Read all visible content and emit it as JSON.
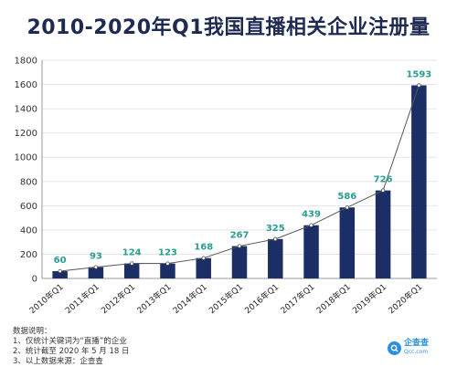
{
  "chart_data": {
    "type": "bar",
    "title": "2010-2020年Q1我国直播相关企业注册量",
    "categories": [
      "2010年Q1",
      "2011年Q1",
      "2012年Q1",
      "2013年Q1",
      "2014年Q1",
      "2015年Q1",
      "2016年Q1",
      "2017年Q1",
      "2018年Q1",
      "2019年Q1",
      "2020年Q1"
    ],
    "values": [
      60,
      93,
      124,
      123,
      168,
      267,
      325,
      439,
      586,
      726,
      1593
    ],
    "ylim": [
      0,
      1800
    ],
    "yticks": [
      "0",
      "200",
      "400",
      "600",
      "800",
      "1000",
      "1200",
      "1400",
      "1600",
      "1800"
    ],
    "xlabel": "",
    "ylabel": "",
    "grid": true,
    "trend_line": true,
    "colors": {
      "bar": "#1b2f66",
      "label": "#2a9d8f",
      "title": "#1e2a52",
      "grid": "#e6e6e6"
    }
  },
  "notes": {
    "heading": "数据说明：",
    "lines": [
      "1、仅统计关键词为“直播”的企业",
      "2、统计截至 2020 年 5 月 18 日",
      "3、以上数据来源：企查查"
    ]
  },
  "brand": {
    "name": "企查查",
    "domain": "Qcc.com",
    "icon": "qcc-logo-icon"
  }
}
